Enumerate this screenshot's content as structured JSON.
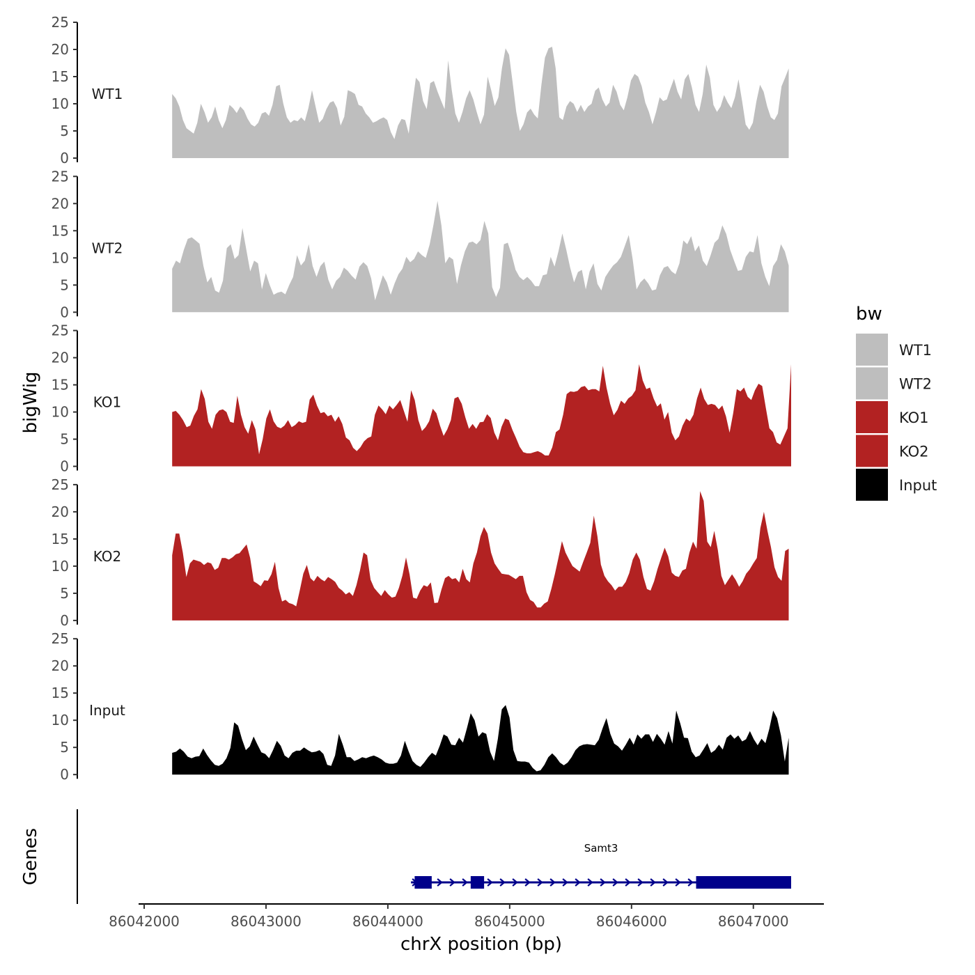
{
  "chart_data": {
    "type": "area",
    "xlabel": "chrX position (bp)",
    "ylabel": "bigWig",
    "genes_label": "Genes",
    "xlim": [
      86041950,
      86047550
    ],
    "x_ticks": [
      86042000,
      86043000,
      86044000,
      86045000,
      86046000,
      86047000
    ],
    "x_tick_labels": [
      "86042000",
      "86043000",
      "86044000",
      "86045000",
      "86046000",
      "86047000"
    ],
    "ylim": [
      0,
      25
    ],
    "y_ticks": [
      0,
      5,
      10,
      15,
      20,
      25
    ],
    "y_tick_labels": [
      "0",
      "5",
      "10",
      "15",
      "20",
      "25"
    ],
    "legend": {
      "title": "bw",
      "position": "right",
      "entries": [
        {
          "label": "WT1",
          "color": "#bebebe"
        },
        {
          "label": "WT2",
          "color": "#bebebe"
        },
        {
          "label": "KO1",
          "color": "#b22222"
        },
        {
          "label": "KO2",
          "color": "#b22222"
        },
        {
          "label": "Input",
          "color": "#000000"
        }
      ]
    },
    "series": [
      {
        "name": "WT1",
        "color": "#bebebe",
        "x_start": 86042230,
        "x_end": 86047290,
        "values": [
          11.8,
          11,
          9.5,
          7,
          5.5,
          5,
          4.5,
          6.5,
          10,
          8.5,
          6.5,
          7.5,
          9.5,
          7,
          5.5,
          7,
          9.8,
          9.2,
          8.3,
          9.5,
          8.8,
          7.3,
          6.2,
          5.8,
          6.5,
          8.2,
          8.5,
          7.8,
          9.8,
          13.2,
          13.5,
          10,
          7.5,
          6.5,
          7,
          6.8,
          7.5,
          6.8,
          9.2,
          12.5,
          9.5,
          6.5,
          7.2,
          9,
          10.2,
          10.5,
          9.2,
          6,
          7.6,
          12.5,
          12.2,
          11.8,
          9.8,
          9.5,
          8.2,
          7.5,
          6.5,
          6.8,
          7.2,
          7.5,
          7,
          4.8,
          3.5,
          6,
          7.2,
          7,
          4.5,
          10,
          14.8,
          14,
          10.5,
          9,
          13.8,
          14.2,
          12.3,
          10.6,
          9,
          18,
          12.5,
          8.2,
          6.5,
          8.5,
          11,
          12.5,
          10.8,
          8.4,
          6.2,
          8,
          15,
          12.5,
          9.6,
          11.2,
          16.5,
          20.2,
          19,
          13.8,
          8.5,
          5,
          6.2,
          8.4,
          9.1,
          8,
          7.3,
          13.5,
          18.5,
          20.2,
          20.5,
          16.5,
          7.5,
          7,
          9.5,
          10.5,
          10,
          8.5,
          9.8,
          8.5,
          9.5,
          10,
          12.4,
          13,
          10.8,
          9.5,
          10.2,
          13.5,
          12.2,
          9.8,
          8.8,
          11.2,
          14.3,
          15.5,
          15,
          13.2,
          10.2,
          8.5,
          6.2,
          8.5,
          11.2,
          10.5,
          10.8,
          12.8,
          14.6,
          12.2,
          10.8,
          14.5,
          15.5,
          13,
          9.8,
          8.5,
          11.8,
          17.2,
          14.8,
          9.8,
          8.5,
          9.5,
          11.6,
          10.2,
          9.2,
          11.2,
          14.5,
          10.5,
          6.2,
          5.2,
          6.5,
          10.5,
          13.5,
          12.2,
          9.5,
          7.5,
          7,
          8.2,
          13.2,
          14.8,
          16.5
        ],
        "track_label": "WT1"
      },
      {
        "name": "WT2",
        "color": "#bebebe",
        "x_start": 86042230,
        "x_end": 86047290,
        "values": [
          8,
          9.5,
          9,
          11.5,
          13.5,
          13.8,
          13.2,
          12.6,
          8.5,
          5.5,
          6.5,
          4,
          3.6,
          5.8,
          11.8,
          12.5,
          9.8,
          10.5,
          15.5,
          11.5,
          7.5,
          9.5,
          9,
          4.2,
          7.2,
          5,
          3.2,
          3.6,
          3.8,
          3.3,
          5,
          6.5,
          10.5,
          8.6,
          9.5,
          12.5,
          8.5,
          6.5,
          8.5,
          9.3,
          6,
          4.2,
          5.8,
          6.5,
          8.2,
          7.6,
          6.7,
          6,
          8.4,
          9.2,
          8.5,
          6.2,
          2.2,
          4.5,
          6.8,
          5.5,
          3.2,
          5.3,
          7,
          8,
          10.2,
          9.2,
          9.8,
          11.2,
          10.5,
          10,
          12.5,
          16.2,
          20.5,
          16,
          9,
          10.2,
          9.7,
          5.2,
          8.6,
          11.2,
          12.8,
          13,
          12.5,
          13.3,
          16.8,
          14.5,
          4.6,
          2.8,
          4.5,
          12.5,
          12.8,
          10.6,
          7.8,
          6.5,
          5.9,
          6.5,
          5.8,
          4.8,
          4.8,
          6.8,
          7,
          10.2,
          8.4,
          11.2,
          14.5,
          11.5,
          8.2,
          5.5,
          7.4,
          7.8,
          4.2,
          7.5,
          9,
          5.2,
          4,
          6.5,
          7.6,
          8.6,
          9.2,
          10.2,
          12.2,
          14.2,
          9.8,
          4.2,
          5.5,
          6.2,
          5.3,
          4,
          4.2,
          6.8,
          8.2,
          8.5,
          7.5,
          7,
          9,
          13.2,
          12.5,
          14,
          11.2,
          12.3,
          9.5,
          8.5,
          10.5,
          12.8,
          13.5,
          16,
          14.4,
          11.5,
          9.5,
          7.6,
          7.8,
          10.2,
          11.2,
          11,
          14.2,
          9,
          6.5,
          4.8,
          8.5,
          9.6,
          12.5,
          11.2,
          8.6
        ],
        "track_label": "WT2"
      },
      {
        "name": "KO1",
        "color": "#b22222",
        "x_start": 86042230,
        "x_end": 86047310,
        "values": [
          10,
          10.2,
          9.5,
          8.5,
          7.2,
          7.5,
          9.3,
          10.5,
          14.2,
          12.4,
          8.2,
          6.9,
          9.5,
          10.3,
          10.5,
          10,
          8.2,
          8,
          13,
          9.5,
          7.2,
          6,
          8.5,
          6.8,
          2.2,
          5,
          8.8,
          10.5,
          8.3,
          7.3,
          7,
          7.5,
          8.5,
          7.2,
          7.6,
          8.3,
          8,
          8.2,
          12.3,
          13.2,
          11.2,
          9.8,
          10,
          9.2,
          9.5,
          8.2,
          9.2,
          7.8,
          5.3,
          4.8,
          3.4,
          2.8,
          3.5,
          4.6,
          5.2,
          5.5,
          9.5,
          11.2,
          10.5,
          9.6,
          11.2,
          10.5,
          11.3,
          12.2,
          10.2,
          8.2,
          14,
          12.2,
          8.5,
          6.5,
          7.2,
          8.3,
          10.6,
          9.8,
          7.5,
          5.6,
          6.8,
          8.5,
          12.5,
          12.8,
          11.5,
          9,
          6.9,
          7.8,
          6.9,
          8.1,
          8.2,
          9.6,
          8.9,
          6.2,
          4.8,
          7.3,
          8.8,
          8.5,
          6.7,
          5.2,
          3.6,
          2.6,
          2.4,
          2.4,
          2.6,
          2.8,
          2.5,
          2,
          2,
          3.5,
          6.3,
          6.8,
          9.5,
          13.3,
          13.8,
          13.7,
          13.9,
          14.6,
          14.8,
          14,
          14.2,
          14.2,
          13.8,
          18.5,
          14.5,
          11.5,
          9.4,
          10.4,
          12.1,
          11.5,
          12.5,
          13,
          14,
          18.8,
          15.8,
          14.2,
          14.5,
          12.5,
          11,
          11.6,
          8.6,
          10,
          6.2,
          4.8,
          5.5,
          7.5,
          8.8,
          8.3,
          9.5,
          12.5,
          14.5,
          12.4,
          11.3,
          11.5,
          11.3,
          10.5,
          11.2,
          9.2,
          6.2,
          9.8,
          14.2,
          13.8,
          14.5,
          12.8,
          12.2,
          14,
          15.2,
          14.8,
          10.8,
          7,
          6.3,
          4.4,
          4,
          5.5,
          7,
          18.8
        ],
        "track_label": "KO1"
      },
      {
        "name": "KO2",
        "color": "#b22222",
        "x_start": 86042230,
        "x_end": 86047290,
        "values": [
          12,
          16,
          16,
          12.5,
          8,
          10.5,
          11.2,
          11,
          10.8,
          10.2,
          10.7,
          10.5,
          9.3,
          9.7,
          11.5,
          11.5,
          11.2,
          11.6,
          12.2,
          12.4,
          13.2,
          14,
          11.5,
          7.2,
          6.8,
          6.3,
          7.4,
          7.3,
          8.5,
          10.8,
          6,
          3.5,
          3.8,
          3.2,
          3,
          2.6,
          5.5,
          8.6,
          10.2,
          7.8,
          7.2,
          8.2,
          7.6,
          7.2,
          8,
          7.6,
          7.1,
          6,
          5.5,
          4.8,
          5.2,
          4.5,
          6.5,
          9.2,
          12.5,
          12,
          7.5,
          6,
          5.2,
          4.5,
          5.6,
          4.8,
          4.2,
          4.4,
          6,
          8.3,
          11.6,
          8.5,
          4.2,
          4,
          5.5,
          6.5,
          6.2,
          7,
          3.2,
          3.3,
          5.7,
          7.8,
          8.2,
          7.6,
          7.8,
          7,
          9.5,
          7.6,
          7,
          10.5,
          12.5,
          15.5,
          17.2,
          16,
          12.5,
          10.5,
          9.5,
          8.6,
          8.5,
          8.4,
          8,
          7.6,
          8.2,
          8.2,
          5.2,
          3.8,
          3.4,
          2.4,
          2.4,
          3.1,
          3.5,
          5.8,
          8.5,
          11.5,
          14.6,
          12.5,
          11.2,
          10,
          9.5,
          9,
          10.8,
          12.5,
          14.3,
          19.3,
          15.5,
          10.3,
          8.2,
          7.2,
          6.5,
          5.5,
          6.2,
          6.2,
          7.1,
          8.7,
          11.2,
          12.5,
          11.2,
          8,
          5.8,
          5.5,
          7.2,
          9.5,
          11.5,
          13.4,
          11.8,
          8.8,
          8.2,
          8,
          9.2,
          9.5,
          12.5,
          14.5,
          13.2,
          23.8,
          22,
          14.5,
          13.5,
          16.5,
          13,
          8.2,
          6.5,
          7.5,
          8.5,
          7.5,
          6.2,
          7.2,
          8.6,
          9.4,
          10.5,
          11.5,
          17,
          20,
          16.5,
          13.5,
          9.8,
          8,
          7.3,
          12.8,
          13.2
        ],
        "track_label": "KO2"
      },
      {
        "name": "Input",
        "color": "#000000",
        "x_start": 86042230,
        "x_end": 86047290,
        "values": [
          4,
          4.2,
          4.8,
          4.2,
          3.3,
          3,
          3.3,
          3.4,
          4.8,
          3.6,
          2.6,
          1.8,
          1.6,
          2,
          3,
          4.9,
          9.6,
          9,
          6.5,
          4.5,
          5.2,
          7,
          5.5,
          4.1,
          3.8,
          3,
          4.5,
          6.2,
          5.3,
          3.5,
          3,
          4,
          4.4,
          4.4,
          5,
          4.5,
          4.1,
          4.2,
          4.5,
          3.8,
          1.8,
          1.6,
          3.5,
          7.5,
          5.5,
          3.2,
          3.2,
          2.5,
          2.8,
          3.2,
          3,
          3.3,
          3.5,
          3.2,
          2.8,
          2.2,
          2,
          2,
          2.2,
          3.5,
          6.2,
          4.2,
          2.5,
          1.8,
          1.4,
          2.2,
          3.2,
          4,
          3.5,
          5.3,
          7.4,
          7,
          5.5,
          5.4,
          6.8,
          5.9,
          8.5,
          11.3,
          10,
          7,
          7.8,
          7.5,
          4.2,
          2.5,
          6.6,
          12,
          12.8,
          10.5,
          4.5,
          2.5,
          2.4,
          2.4,
          2.2,
          1.2,
          0.6,
          0.8,
          1.8,
          3.2,
          3.9,
          3.2,
          2.2,
          1.7,
          2.2,
          3.2,
          4.5,
          5.2,
          5.5,
          5.6,
          5.5,
          5.4,
          6.4,
          8.5,
          10.4,
          7.5,
          5.7,
          5.2,
          4.4,
          5.5,
          6.8,
          5.5,
          7.4,
          6.6,
          7.4,
          7.4,
          6,
          7.5,
          6.6,
          5.5,
          8,
          5.7,
          11.8,
          9.5,
          6.8,
          6.7,
          4.2,
          3.2,
          3.5,
          4.6,
          5.8,
          4,
          4.5,
          5.5,
          4.6,
          6.8,
          7.4,
          6.6,
          7.2,
          6.1,
          6.5,
          8,
          6.5,
          5.4,
          6.6,
          5.8,
          8.4,
          11.8,
          10.4,
          7.2,
          2.4,
          6.8
        ],
        "track_label": "Input"
      }
    ],
    "genes": [
      {
        "name": "Samt3",
        "strand": "+",
        "color": "#00008b",
        "start": 86044190,
        "end": 86047310,
        "exons": [
          [
            86044220,
            86044360
          ],
          [
            86044680,
            86044790
          ],
          [
            86046530,
            86047310
          ]
        ]
      }
    ]
  }
}
